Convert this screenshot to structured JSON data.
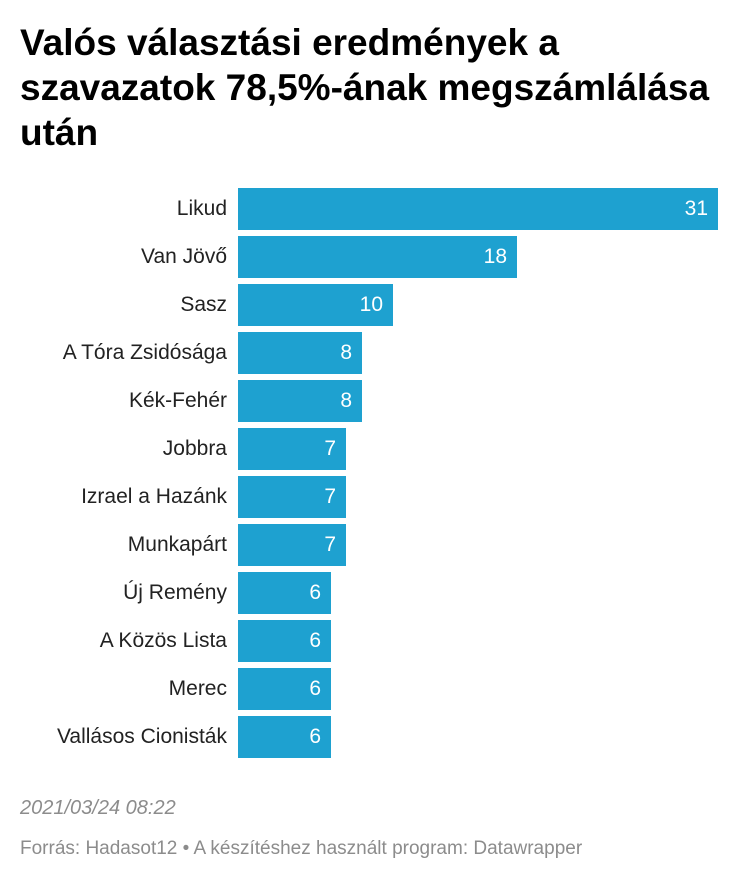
{
  "chart_data": {
    "type": "bar",
    "orientation": "horizontal",
    "title": "Valós választási eredmények a szavazatok 78,5%-ának megszámlálása után",
    "categories": [
      "Likud",
      "Van Jövő",
      "Sasz",
      "A Tóra Zsidósága",
      "Kék-Fehér",
      "Jobbra",
      "Izrael a Hazánk",
      "Munkapárt",
      "Új Remény",
      "A Közös Lista",
      "Merec",
      "Vallásos Cionisták"
    ],
    "values": [
      31,
      18,
      10,
      8,
      8,
      7,
      7,
      7,
      6,
      6,
      6,
      6
    ],
    "xlim": [
      0,
      31
    ],
    "grid": false,
    "legend": "none",
    "bar_color": "#1ea1d0",
    "value_label_color": "#ffffff"
  },
  "footer": {
    "date": "2021/03/24 08:22",
    "source": "Forrás: Hadasot12 • A készítéshez használt program: Datawrapper"
  }
}
